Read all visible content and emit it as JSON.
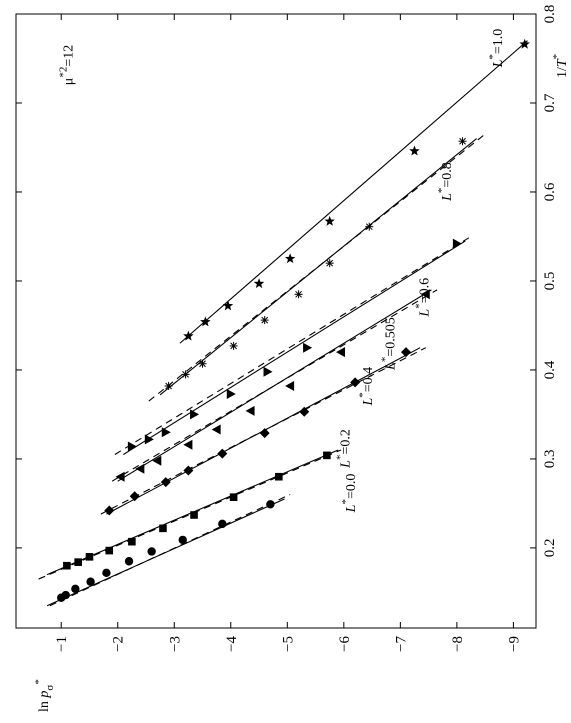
{
  "chart_data": {
    "type": "scatter",
    "orientation": "rotated-90-clockwise",
    "xlabel_main": "1/T",
    "xlabel_sup": "*",
    "ylabel_main": "ln p",
    "ylabel_sub": "σ",
    "ylabel_sup": "*",
    "xlim": [
      0.11,
      0.8
    ],
    "ylim": [
      -9.4,
      -0.2
    ],
    "x_ticks": [
      0.2,
      0.3,
      0.4,
      0.5,
      0.6,
      0.7,
      0.8
    ],
    "x_tick_labels": [
      "0.2",
      "0.3",
      "0.4",
      "0.5",
      "0.6",
      "0.7",
      "0.8"
    ],
    "y_ticks": [
      -1,
      -2,
      -3,
      -4,
      -5,
      -6,
      -7,
      -8,
      -9
    ],
    "y_tick_labels": [
      "−1",
      "−2",
      "−3",
      "−4",
      "−5",
      "−6",
      "−7",
      "−8",
      "−9"
    ],
    "grid": false,
    "annotation_mu": {
      "base": "μ",
      "sup": "*2",
      "rest": "=12",
      "x": 0.72,
      "y": -1.2
    },
    "series": [
      {
        "name": "L*=0.0",
        "label_pre": "L",
        "label_sup": "*",
        "label_post": "=0.0",
        "label_at": [
          0.24,
          -6.2
        ],
        "marker": "circle",
        "x": [
          0.144,
          0.147,
          0.154,
          0.162,
          0.172,
          0.185,
          0.196,
          0.209,
          0.227,
          0.249
        ],
        "y": [
          -1.0,
          -1.08,
          -1.25,
          -1.52,
          -1.8,
          -2.2,
          -2.6,
          -3.15,
          -3.85,
          -4.7
        ],
        "fit": [
          [
            0.135,
            -0.75
          ],
          [
            0.255,
            -4.95
          ]
        ],
        "dfit": [
          [
            0.135,
            -0.8
          ],
          [
            0.26,
            -5.05
          ]
        ]
      },
      {
        "name": "L*=0.2",
        "label_pre": "L",
        "label_sup": "*",
        "label_post": "=0.2",
        "label_at": [
          0.29,
          -6.1
        ],
        "marker": "square",
        "x": [
          0.18,
          0.184,
          0.19,
          0.197,
          0.207,
          0.222,
          0.237,
          0.257,
          0.28,
          0.304
        ],
        "y": [
          -1.1,
          -1.3,
          -1.5,
          -1.85,
          -2.25,
          -2.8,
          -3.35,
          -4.05,
          -4.85,
          -5.7
        ],
        "fit": [
          [
            0.17,
            -0.75
          ],
          [
            0.31,
            -5.9
          ]
        ],
        "dfit": [
          [
            0.165,
            -0.6
          ],
          [
            0.31,
            -5.95
          ]
        ]
      },
      {
        "name": "L*=0.4",
        "label_pre": "L",
        "label_sup": "*",
        "label_post": "=0.4",
        "label_at": [
          0.36,
          -6.5
        ],
        "marker": "diamond",
        "x": [
          0.242,
          0.258,
          0.274,
          0.287,
          0.306,
          0.329,
          0.353,
          0.386,
          0.42
        ],
        "y": [
          -1.85,
          -2.3,
          -2.85,
          -3.25,
          -3.85,
          -4.6,
          -5.3,
          -6.2,
          -7.1
        ],
        "fit": [
          [
            0.238,
            -1.8
          ],
          [
            0.425,
            -7.35
          ]
        ],
        "dfit": [
          [
            0.238,
            -1.7
          ],
          [
            0.425,
            -7.45
          ]
        ]
      },
      {
        "name": "L*=0.505",
        "label_pre": "L",
        "label_sup": "*",
        "label_post": "=0.505",
        "label_at": [
          0.4,
          -6.9
        ],
        "marker": "triangle-left",
        "x": [
          0.28,
          0.289,
          0.298,
          0.316,
          0.333,
          0.354,
          0.382,
          0.42,
          0.485
        ],
        "y": [
          -2.05,
          -2.4,
          -2.7,
          -3.25,
          -3.75,
          -4.35,
          -5.05,
          -5.95,
          -7.45
        ],
        "fit": [
          [
            0.275,
            -2.0
          ],
          [
            0.49,
            -7.55
          ]
        ],
        "dfit": [
          [
            0.275,
            -1.9
          ],
          [
            0.49,
            -7.65
          ]
        ]
      },
      {
        "name": "L*=0.6",
        "label_pre": "L",
        "label_sup": "*",
        "label_post": "=0.6",
        "label_at": [
          0.46,
          -7.5
        ],
        "marker": "triangle-right",
        "x": [
          0.314,
          0.322,
          0.33,
          0.35,
          0.373,
          0.398,
          0.425,
          0.542
        ],
        "y": [
          -2.25,
          -2.55,
          -2.85,
          -3.35,
          -4.0,
          -4.65,
          -5.35,
          -8.0
        ],
        "fit": [
          [
            0.305,
            -2.1
          ],
          [
            0.545,
            -8.15
          ]
        ],
        "dfit": [
          [
            0.305,
            -1.95
          ],
          [
            0.55,
            -8.25
          ]
        ]
      },
      {
        "name": "L*=0.8",
        "label_pre": "L",
        "label_sup": "*",
        "label_post": "=0.8",
        "label_at": [
          0.59,
          -7.9
        ],
        "marker": "asterisk",
        "x": [
          0.382,
          0.395,
          0.407,
          0.427,
          0.456,
          0.485,
          0.52,
          0.561,
          0.657
        ],
        "y": [
          -2.9,
          -3.2,
          -3.5,
          -4.05,
          -4.6,
          -5.2,
          -5.75,
          -6.45,
          -8.1
        ],
        "fit": [
          [
            0.372,
            -2.75
          ],
          [
            0.66,
            -8.35
          ]
        ],
        "dfit": [
          [
            0.365,
            -2.55
          ],
          [
            0.665,
            -8.5
          ]
        ]
      },
      {
        "name": "L*=1.0",
        "label_pre": "L",
        "label_sup": "*",
        "label_post": "=1.0",
        "label_at": [
          0.74,
          -8.8
        ],
        "marker": "star",
        "x": [
          0.438,
          0.454,
          0.472,
          0.497,
          0.525,
          0.567,
          0.646,
          0.766
        ],
        "y": [
          -3.25,
          -3.55,
          -3.95,
          -4.5,
          -5.05,
          -5.75,
          -7.25,
          -9.2
        ],
        "fit": [
          [
            0.43,
            -3.1
          ],
          [
            0.77,
            -9.25
          ]
        ],
        "dfit": []
      }
    ]
  }
}
